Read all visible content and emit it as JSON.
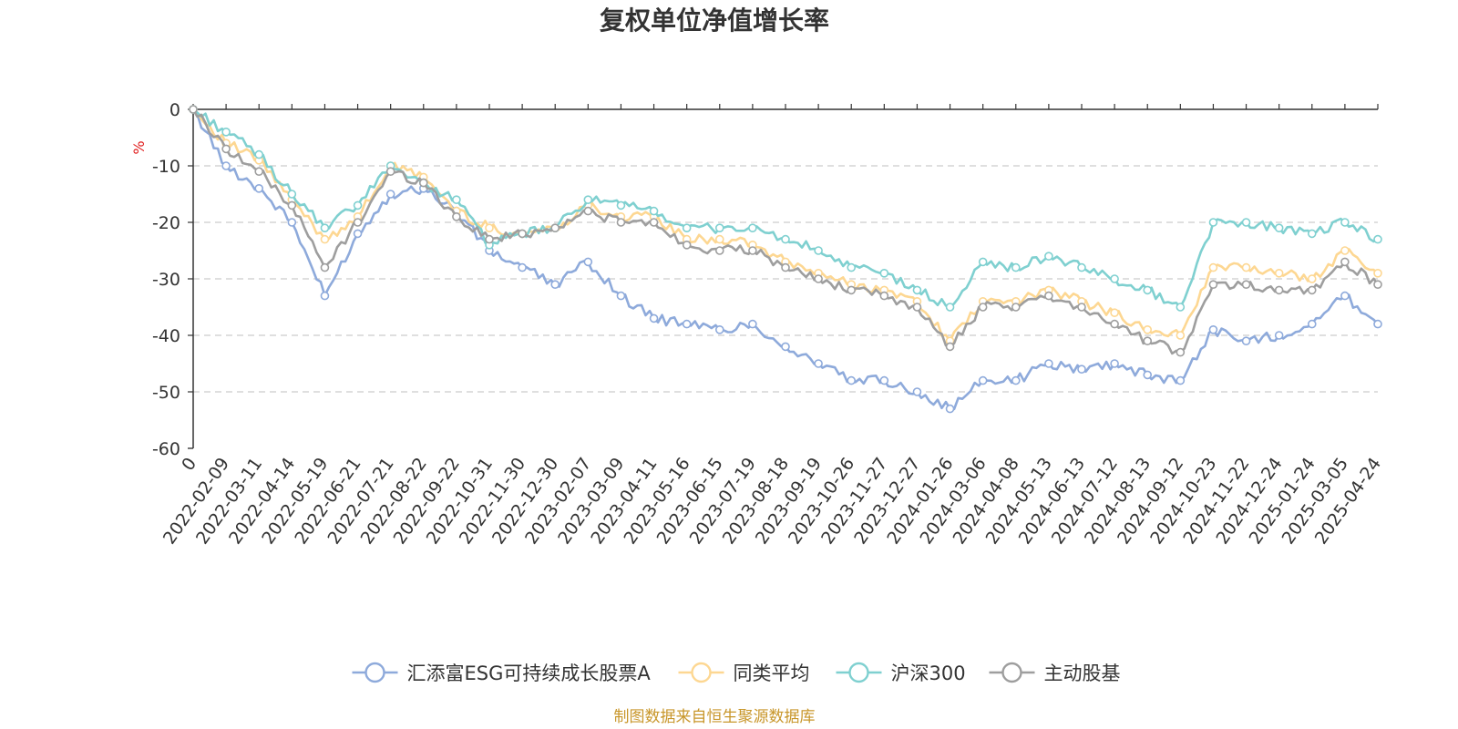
{
  "chart_data": {
    "type": "line",
    "title": "复权单位净值增长率",
    "ylabel": "%",
    "ylim": [
      -60,
      0
    ],
    "yticks": [
      0,
      -10,
      -20,
      -30,
      -40,
      -50,
      -60
    ],
    "xlabel": "",
    "x": [
      "0",
      "2022-02-09",
      "2022-03-11",
      "2022-04-14",
      "2022-05-19",
      "2022-06-21",
      "2022-07-21",
      "2022-08-22",
      "2022-09-22",
      "2022-10-31",
      "2022-11-30",
      "2022-12-30",
      "2023-02-07",
      "2023-03-09",
      "2023-04-11",
      "2023-05-16",
      "2023-06-15",
      "2023-07-19",
      "2023-08-18",
      "2023-09-19",
      "2023-10-26",
      "2023-11-27",
      "2023-12-27",
      "2024-01-26",
      "2024-03-06",
      "2024-04-08",
      "2024-05-13",
      "2024-06-13",
      "2024-07-12",
      "2024-08-13",
      "2024-09-12",
      "2024-10-23",
      "2024-11-22",
      "2024-12-24",
      "2025-01-24",
      "2025-03-05",
      "2025-04-24"
    ],
    "series": [
      {
        "name": "汇添富ESG可持续成长股票A",
        "color": "#8eaadb",
        "values": [
          0,
          -10,
          -14,
          -20,
          -33,
          -22,
          -15,
          -14,
          -18,
          -25,
          -28,
          -31,
          -27,
          -33,
          -37,
          -38,
          -39,
          -38,
          -42,
          -45,
          -48,
          -48,
          -50,
          -53,
          -48,
          -48,
          -45,
          -46,
          -45,
          -47,
          -48,
          -39,
          -41,
          -40,
          -38,
          -33,
          -38
        ]
      },
      {
        "name": "同类平均",
        "color": "#fdd792",
        "values": [
          0,
          -6,
          -9,
          -16,
          -23,
          -19,
          -10,
          -12,
          -18,
          -21,
          -22,
          -21,
          -17,
          -19,
          -19,
          -23,
          -23,
          -24,
          -27,
          -29,
          -31,
          -32,
          -34,
          -41,
          -34,
          -34,
          -32,
          -34,
          -36,
          -39,
          -40,
          -28,
          -28,
          -29,
          -30,
          -25,
          -29
        ]
      },
      {
        "name": "沪深300",
        "color": "#7fd0d0",
        "values": [
          0,
          -4,
          -8,
          -15,
          -21,
          -17,
          -10,
          -13,
          -16,
          -24,
          -22,
          -21,
          -16,
          -17,
          -18,
          -21,
          -21,
          -21,
          -23,
          -25,
          -28,
          -29,
          -32,
          -35,
          -27,
          -28,
          -26,
          -28,
          -30,
          -32,
          -35,
          -20,
          -20,
          -21,
          -22,
          -20,
          -23
        ]
      },
      {
        "name": "主动股基",
        "color": "#9e9e9e",
        "values": [
          0,
          -7,
          -11,
          -17,
          -28,
          -20,
          -11,
          -13,
          -19,
          -23,
          -22,
          -21,
          -18,
          -20,
          -20,
          -24,
          -25,
          -25,
          -28,
          -30,
          -32,
          -33,
          -35,
          -42,
          -35,
          -35,
          -33,
          -35,
          -38,
          -41,
          -43,
          -31,
          -31,
          -32,
          -32,
          -27,
          -31
        ]
      }
    ],
    "legend_position": "bottom-center",
    "grid": true
  },
  "source_note": "制图数据来自恒生聚源数据库"
}
